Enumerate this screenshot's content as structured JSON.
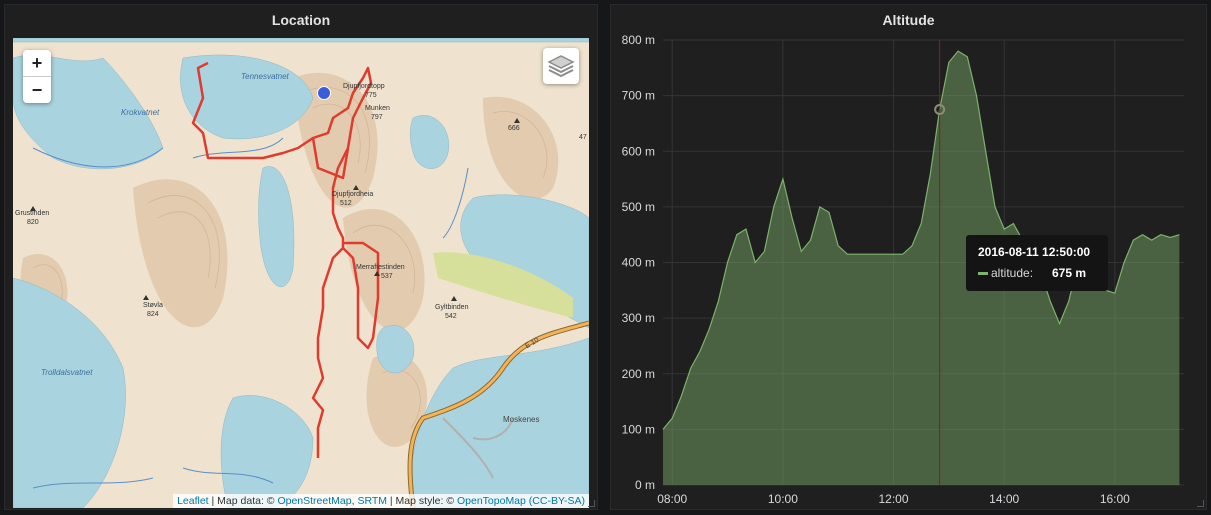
{
  "map_panel": {
    "title": "Location",
    "zoom_in": "+",
    "zoom_out": "−",
    "layers_icon": "layers-icon",
    "labels": {
      "tennesvatnet": "Tennesvatnet",
      "krokvatnet": "Krokvatnet",
      "trolldalsvatnet": "Trolldalsvatnet",
      "djupfjordtopp": "Djupfjordtopp",
      "djupfjordtopp_h": "775",
      "munken": "Munken",
      "munken_h": "797",
      "djupfjordheia": "Djupfjordheia",
      "djupfjordheia_h": "512",
      "grustinden": "Grustinden",
      "grustinden_h": "820",
      "stovla": "Støvla",
      "stovla_h": "824",
      "merraftestinden": "Merraftestinden",
      "merraftestinden_h": "537",
      "gyltbinden": "Gyltbinden",
      "gyltbinden_h": "542",
      "h666": "666",
      "h47": "47",
      "moskenes": "Moskenes",
      "e10": "E 10"
    },
    "attribution": {
      "leaflet": "Leaflet",
      "sep1": " | Map data: © ",
      "osm": "OpenStreetMap",
      "comma": ", ",
      "srtm": "SRTM",
      "sep2": " | Map style: © ",
      "otm": "OpenTopoMap",
      "space": " ",
      "license": "(CC-BY-SA)"
    }
  },
  "altitude_panel": {
    "title": "Altitude",
    "tooltip": {
      "time": "2016-08-11 12:50:00",
      "series": "altitude:",
      "value": "675 m"
    }
  },
  "chart_data": {
    "type": "area",
    "series": [
      {
        "name": "altitude",
        "x": [
          "07:50",
          "08:00",
          "08:10",
          "08:20",
          "08:30",
          "08:40",
          "08:50",
          "09:00",
          "09:10",
          "09:20",
          "09:30",
          "09:40",
          "09:50",
          "10:00",
          "10:10",
          "10:20",
          "10:30",
          "10:40",
          "10:50",
          "11:00",
          "11:10",
          "11:20",
          "11:30",
          "11:40",
          "11:50",
          "12:00",
          "12:10",
          "12:20",
          "12:30",
          "12:40",
          "12:50",
          "13:00",
          "13:10",
          "13:20",
          "13:30",
          "13:40",
          "13:50",
          "14:00",
          "14:10",
          "14:20",
          "14:30",
          "14:40",
          "14:50",
          "15:00",
          "15:10",
          "15:20",
          "15:30",
          "15:40",
          "15:50",
          "16:00",
          "16:10",
          "16:20",
          "16:30",
          "16:40",
          "16:50",
          "17:00",
          "17:10"
        ],
        "y": [
          100,
          120,
          160,
          210,
          240,
          280,
          330,
          400,
          450,
          460,
          400,
          420,
          500,
          550,
          480,
          420,
          440,
          500,
          490,
          430,
          415,
          415,
          415,
          415,
          415,
          415,
          415,
          430,
          470,
          560,
          675,
          760,
          780,
          770,
          700,
          600,
          500,
          460,
          470,
          440,
          400,
          380,
          330,
          290,
          330,
          400,
          420,
          380,
          350,
          345,
          400,
          440,
          450,
          440,
          450,
          445,
          450
        ],
        "color": "#7eb26d"
      }
    ],
    "x_ticks": [
      "08:00",
      "10:00",
      "12:00",
      "14:00",
      "16:00"
    ],
    "y_ticks": [
      "0 m",
      "100 m",
      "200 m",
      "300 m",
      "400 m",
      "500 m",
      "600 m",
      "700 m",
      "800 m"
    ],
    "ylim": [
      0,
      800
    ],
    "xlim": [
      "07:50",
      "17:15"
    ],
    "crosshair_x": "12:50",
    "grid": true
  }
}
